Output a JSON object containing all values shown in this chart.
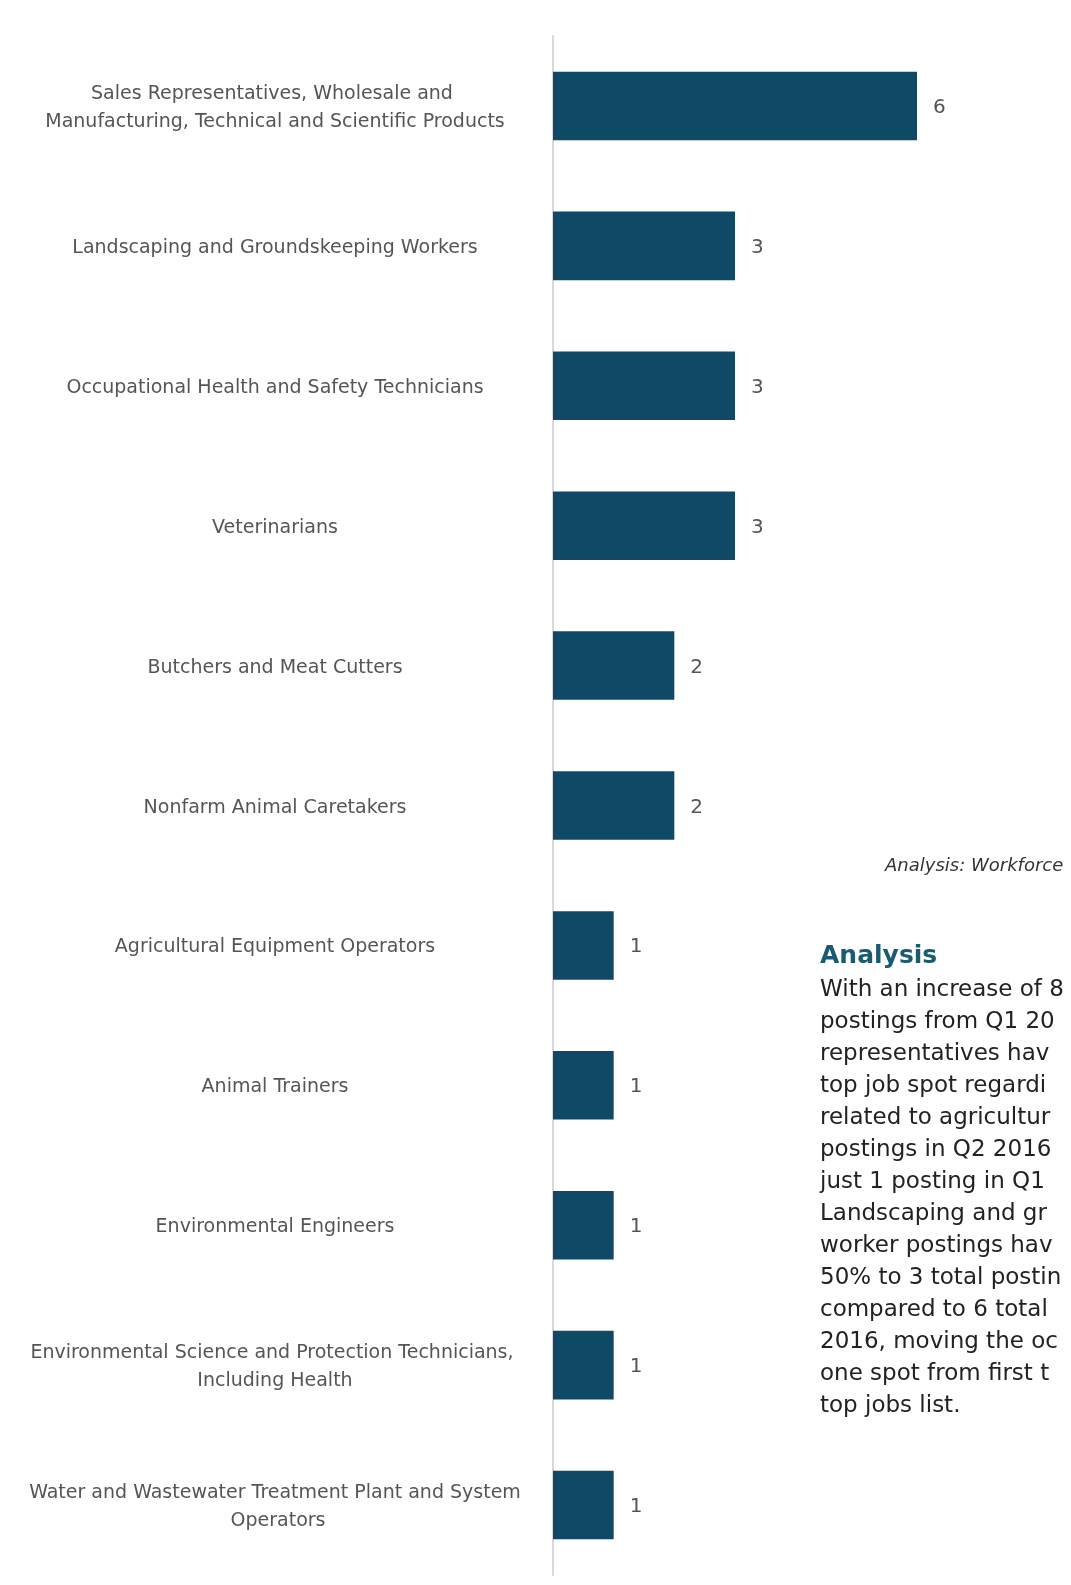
{
  "chart_data": {
    "type": "bar",
    "orientation": "horizontal",
    "categories": [
      "Sales Representatives, Wholesale and Manufacturing, Technical and Scientific Products",
      "Landscaping and Groundskeeping Workers",
      "Occupational Health and Safety Technicians",
      "Veterinarians",
      "Butchers and Meat Cutters",
      "Nonfarm Animal Caretakers",
      "Agricultural Equipment Operators",
      "Animal Trainers",
      "Environmental Engineers",
      "Environmental Science and Protection Technicians, Including Health",
      "Water and Wastewater Treatment Plant and System Operators"
    ],
    "values": [
      6,
      3,
      3,
      3,
      2,
      2,
      1,
      1,
      1,
      1,
      1
    ],
    "color": "#0e4a66",
    "data_labels": true,
    "annotations": [
      "Analysis: Workforce",
      "Analysis",
      "With an increase of 8\npostings from Q1 20\nrepresentatives hav\ntop job spot regardi\nrelated to agricultur\npostings in Q2 2016\njust 1 posting in Q1\nLandscaping and gr\nworker postings hav\n50% to 3 total postin\ncompared to 6 total\n2016, moving the oc\none spot from first t\ntop jobs list."
    ],
    "grid": false
  }
}
